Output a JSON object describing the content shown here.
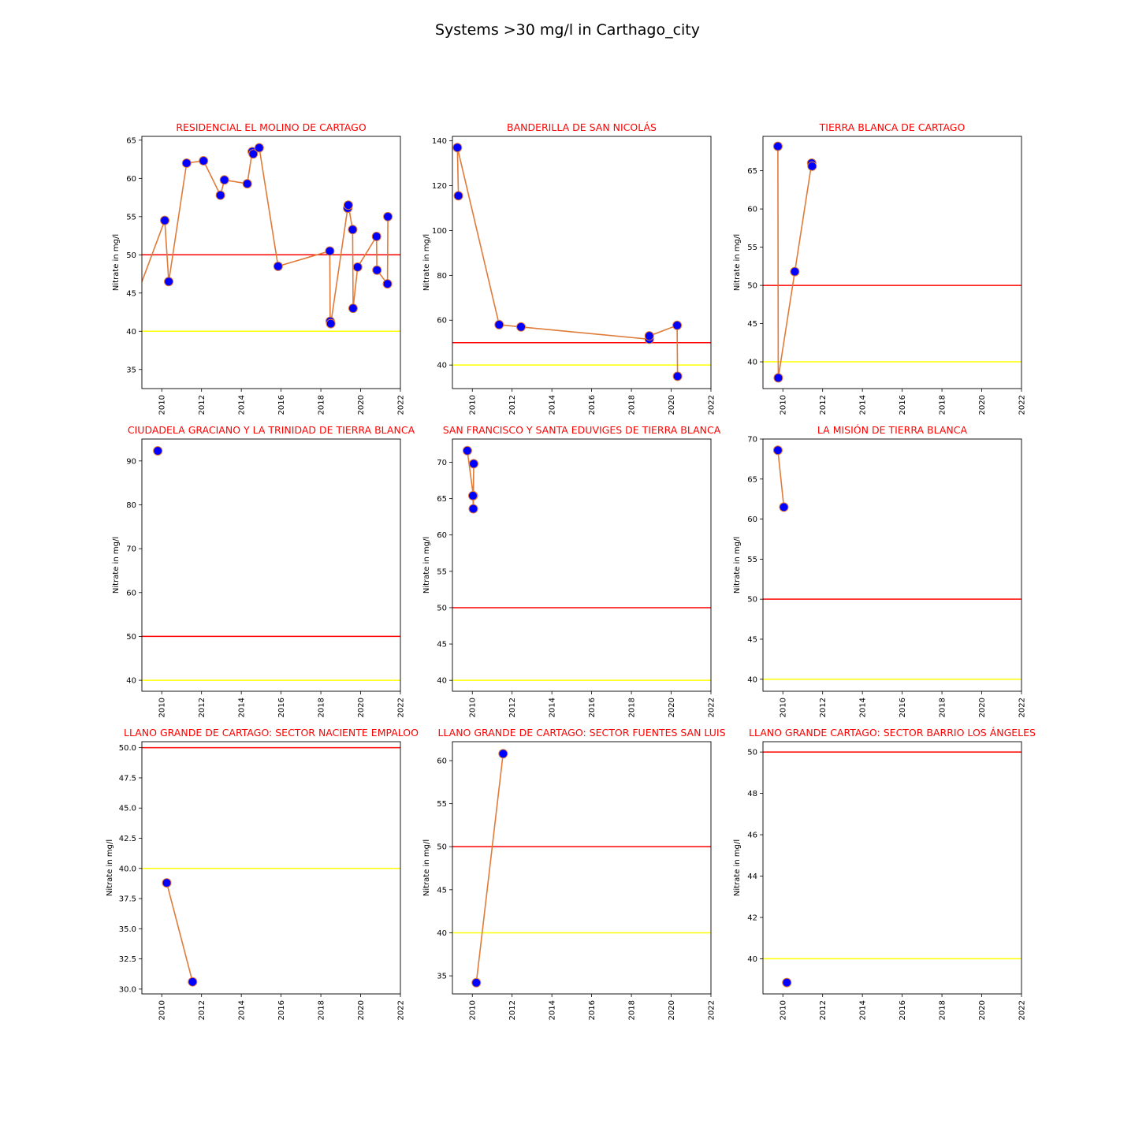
{
  "suptitle": "Systems >30 mg/l in Carthago_city",
  "colors": {
    "series_line": "#e07b39",
    "marker_fill": "#0000ff",
    "marker_edge": "#e07b39",
    "limit_50": "#ff0000",
    "limit_40": "#ffff00",
    "title": "#ff0000"
  },
  "chart_data": [
    {
      "type": "line",
      "title": "RESIDENCIAL EL MOLINO DE CARTAGO",
      "ylabel": "Nitrate in mg/l",
      "xlim": [
        2009,
        2022
      ],
      "ylim": [
        32.5,
        65.5
      ],
      "xticks": [
        "2010",
        "2012",
        "2014",
        "2016",
        "2018",
        "2020",
        "2022"
      ],
      "yticks": [
        "35",
        "40",
        "45",
        "50",
        "55",
        "60",
        "65"
      ],
      "reference_lines": [
        50,
        40
      ],
      "x": [
        2008.5,
        2010.15,
        2010.35,
        2011.25,
        2012.1,
        2012.95,
        2013.15,
        2014.3,
        2014.55,
        2014.6,
        2014.9,
        2015.85,
        2018.45,
        2018.47,
        2018.5,
        2019.35,
        2019.38,
        2019.6,
        2019.62,
        2019.85,
        2020.8,
        2020.82,
        2021.35,
        2021.37
      ],
      "y": [
        43,
        54.5,
        46.5,
        62,
        62.3,
        57.8,
        59.8,
        59.3,
        63.5,
        63.2,
        64,
        48.5,
        50.5,
        41.3,
        41,
        56.1,
        56.5,
        53.3,
        43,
        48.4,
        52.4,
        48,
        46.2,
        55
      ]
    },
    {
      "type": "line",
      "title": "BANDERILLA DE SAN NICOLÁS",
      "ylabel": "Nitrate in mg/l",
      "xlim": [
        2009,
        2022
      ],
      "ylim": [
        29.5,
        142
      ],
      "xticks": [
        "2010",
        "2012",
        "2014",
        "2016",
        "2018",
        "2020",
        "2022"
      ],
      "yticks": [
        "40",
        "60",
        "80",
        "100",
        "120",
        "140"
      ],
      "reference_lines": [
        50,
        40
      ],
      "x": [
        2009.3,
        2009.25,
        2011.35,
        2012.45,
        2018.9,
        2018.9,
        2020.3,
        2020.32
      ],
      "y": [
        115.5,
        137,
        58,
        57,
        51.5,
        53,
        57.7,
        35
      ]
    },
    {
      "type": "line",
      "title": "TIERRA BLANCA DE CARTAGO",
      "ylabel": "Nitrate in mg/l",
      "xlim": [
        2009,
        2022
      ],
      "ylim": [
        36.5,
        69.5
      ],
      "xticks": [
        "2010",
        "2012",
        "2014",
        "2016",
        "2018",
        "2020",
        "2022"
      ],
      "yticks": [
        "40",
        "45",
        "50",
        "55",
        "60",
        "65"
      ],
      "reference_lines": [
        50,
        40
      ],
      "x": [
        2009.75,
        2009.77,
        2010.6,
        2011.45,
        2011.47
      ],
      "y": [
        68.2,
        37.9,
        51.8,
        66,
        65.6
      ]
    },
    {
      "type": "line",
      "title": "CIUDADELA GRACIANO Y LA TRINIDAD DE TIERRA BLANCA",
      "ylabel": "Nitrate in mg/l",
      "xlim": [
        2009,
        2022
      ],
      "ylim": [
        37.5,
        95
      ],
      "xticks": [
        "2010",
        "2012",
        "2014",
        "2016",
        "2018",
        "2020",
        "2022"
      ],
      "yticks": [
        "40",
        "50",
        "60",
        "70",
        "80",
        "90"
      ],
      "reference_lines": [
        50,
        40
      ],
      "x": [
        2009.8
      ],
      "y": [
        92.3
      ]
    },
    {
      "type": "line",
      "title": "SAN FRANCISCO Y SANTA EDUVIGES DE TIERRA BLANCA",
      "ylabel": "Nitrate in mg/l",
      "xlim": [
        2009,
        2022
      ],
      "ylim": [
        38.5,
        73.2
      ],
      "xticks": [
        "2010",
        "2012",
        "2014",
        "2016",
        "2018",
        "2020",
        "2022"
      ],
      "yticks": [
        "40",
        "45",
        "50",
        "55",
        "60",
        "65",
        "70"
      ],
      "reference_lines": [
        50,
        40
      ],
      "x": [
        2009.75,
        2010.05,
        2010.07,
        2010.05,
        2010.03
      ],
      "y": [
        71.6,
        65.4,
        69.8,
        63.6,
        65.4
      ]
    },
    {
      "type": "line",
      "title": "LA MISIÓN DE TIERRA BLANCA",
      "ylabel": "Nitrate in mg/l",
      "xlim": [
        2009,
        2022
      ],
      "ylim": [
        38.5,
        70
      ],
      "xticks": [
        "2010",
        "2012",
        "2014",
        "2016",
        "2018",
        "2020",
        "2022"
      ],
      "yticks": [
        "40",
        "45",
        "50",
        "55",
        "60",
        "65",
        "70"
      ],
      "reference_lines": [
        50,
        40
      ],
      "x": [
        2009.75,
        2010.05
      ],
      "y": [
        68.6,
        61.5
      ]
    },
    {
      "type": "line",
      "title": "LLANO GRANDE DE CARTAGO: SECTOR NACIENTE EMPALOO",
      "ylabel": "Nitrate in mg/l",
      "xlim": [
        2009,
        2022
      ],
      "ylim": [
        29.6,
        50.5
      ],
      "xticks": [
        "2010",
        "2012",
        "2014",
        "2016",
        "2018",
        "2020",
        "2022"
      ],
      "yticks": [
        "30.0",
        "32.5",
        "35.0",
        "37.5",
        "40.0",
        "42.5",
        "45.0",
        "47.5",
        "50.0"
      ],
      "reference_lines": [
        50,
        40
      ],
      "x": [
        2010.25,
        2011.55
      ],
      "y": [
        38.8,
        30.6
      ]
    },
    {
      "type": "line",
      "title": "LLANO GRANDE DE CARTAGO: SECTOR FUENTES SAN LUIS",
      "ylabel": "Nitrate in mg/l",
      "xlim": [
        2009,
        2022
      ],
      "ylim": [
        32.9,
        62.2
      ],
      "xticks": [
        "2010",
        "2012",
        "2014",
        "2016",
        "2018",
        "2020",
        "2022"
      ],
      "yticks": [
        "35",
        "40",
        "45",
        "50",
        "55",
        "60"
      ],
      "reference_lines": [
        50,
        40
      ],
      "x": [
        2010.2,
        2011.55
      ],
      "y": [
        34.2,
        60.8
      ]
    },
    {
      "type": "line",
      "title": "LLANO GRANDE CARTAGO: SECTOR BARRIO LOS ÁNGELES",
      "ylabel": "Nitrate in mg/l",
      "xlim": [
        2009,
        2022
      ],
      "ylim": [
        38.3,
        50.5
      ],
      "xticks": [
        "2010",
        "2012",
        "2014",
        "2016",
        "2018",
        "2020",
        "2022"
      ],
      "yticks": [
        "40",
        "42",
        "44",
        "46",
        "48",
        "50"
      ],
      "reference_lines": [
        50,
        40
      ],
      "x": [
        2010.2
      ],
      "y": [
        38.85
      ]
    }
  ]
}
